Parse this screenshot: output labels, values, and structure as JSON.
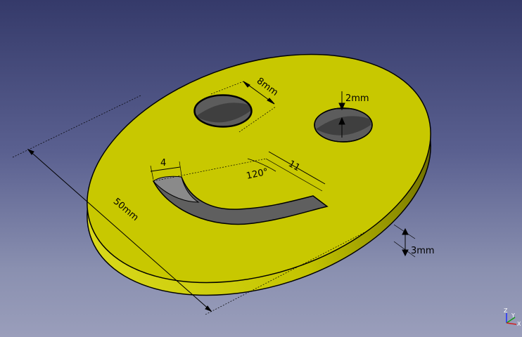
{
  "viewer": {
    "background_top": "#353a6a",
    "background_bottom": "#9a9ebb",
    "model_color": "#c8c800",
    "cut_color": "#5c5c5c"
  },
  "dimensions": {
    "eye_diameter": "8mm",
    "eye_depth": "2mm",
    "mouth_width": "4",
    "mouth_radius": "11",
    "mouth_angle": "120°",
    "face_diameter": "50mm",
    "thickness": "3mm"
  },
  "axis": {
    "z": "Z",
    "y": "Y",
    "x": "X"
  }
}
